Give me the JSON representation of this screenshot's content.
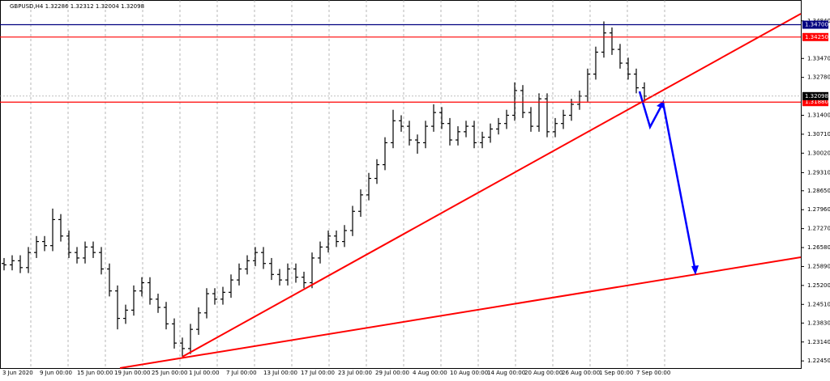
{
  "chart_data": {
    "type": "ohlc",
    "title": "GBPUSD,H4  1.32286 1.32312 1.32004 1.32098",
    "color": "#000000",
    "ylim": [
      1.2219,
      1.356
    ],
    "yticks": [
      {
        "value": 1.3484,
        "label": "1.34840"
      },
      {
        "value": 1.3347,
        "label": "1.33470"
      },
      {
        "value": 1.3278,
        "label": "1.32780"
      },
      {
        "value": 1.314,
        "label": "1.31400"
      },
      {
        "value": 1.3071,
        "label": "1.30710"
      },
      {
        "value": 1.3002,
        "label": "1.30020"
      },
      {
        "value": 1.2931,
        "label": "1.29310"
      },
      {
        "value": 1.2865,
        "label": "1.28650"
      },
      {
        "value": 1.2796,
        "label": "1.27960"
      },
      {
        "value": 1.2727,
        "label": "1.27270"
      },
      {
        "value": 1.2658,
        "label": "1.26580"
      },
      {
        "value": 1.2589,
        "label": "1.25890"
      },
      {
        "value": 1.252,
        "label": "1.25200"
      },
      {
        "value": 1.2451,
        "label": "1.24510"
      },
      {
        "value": 1.2383,
        "label": "1.23830"
      },
      {
        "value": 1.2314,
        "label": "1.23140"
      },
      {
        "value": 1.2245,
        "label": "1.22450"
      }
    ],
    "x_labels": [
      "3 Jun 2020",
      "9 Jun 00:00",
      "15 Jun 00:00",
      "19 Jun 00:00",
      "25 Jun 00:00",
      "1 Jul 00:00",
      "7 Jul 00:00",
      "13 Jul 00:00",
      "17 Jul 00:00",
      "23 Jul 00:00",
      "29 Jul 00:00",
      "4 Aug 00:00",
      "10 Aug 00:00",
      "14 Aug 00:00",
      "20 Aug 00:00",
      "26 Aug 00:00",
      "1 Sep 00:00",
      "7 Sep 00:00"
    ],
    "levels": [
      {
        "value": 1.347,
        "label": "1.34700",
        "color": "#000080"
      },
      {
        "value": 1.3425,
        "label": "1.34250",
        "color": "#ff0000"
      },
      {
        "value": 1.3188,
        "label": "1.31880",
        "color": "#ff0000"
      },
      {
        "value": 1.32098,
        "label": "1.32098",
        "color": "#000000"
      }
    ],
    "open": [
      1.26,
      1.2595,
      1.261,
      1.2585,
      1.264,
      1.268,
      1.2665,
      1.276,
      1.27,
      1.264,
      1.262,
      1.266,
      1.264,
      1.258,
      1.25,
      1.24,
      1.243,
      1.25,
      1.253,
      1.247,
      1.244,
      1.238,
      1.231,
      1.229,
      1.236,
      1.242,
      1.249,
      1.247,
      1.2495,
      1.254,
      1.258,
      1.261,
      1.264,
      1.26,
      1.256,
      1.254,
      1.258,
      1.255,
      1.253,
      1.262,
      1.266,
      1.27,
      1.268,
      1.272,
      1.279,
      1.285,
      1.291,
      1.296,
      1.304,
      1.312,
      1.31,
      1.305,
      1.304,
      1.31,
      1.315,
      1.311,
      1.305,
      1.308,
      1.31,
      1.304,
      1.306,
      1.309,
      1.311,
      1.314,
      1.323,
      1.315,
      1.31,
      1.32,
      1.308,
      1.311,
      1.314,
      1.318,
      1.321,
      1.329,
      1.337,
      1.344,
      1.338,
      1.333,
      1.329,
      1.324
    ],
    "high": [
      1.262,
      1.263,
      1.263,
      1.266,
      1.27,
      1.27,
      1.28,
      1.278,
      1.272,
      1.266,
      1.268,
      1.268,
      1.266,
      1.26,
      1.252,
      1.245,
      1.252,
      1.255,
      1.255,
      1.249,
      1.246,
      1.24,
      1.233,
      1.238,
      1.244,
      1.251,
      1.251,
      1.2515,
      1.256,
      1.26,
      1.263,
      1.266,
      1.266,
      1.262,
      1.258,
      1.26,
      1.26,
      1.257,
      1.264,
      1.268,
      1.272,
      1.272,
      1.274,
      1.281,
      1.287,
      1.293,
      1.298,
      1.306,
      1.316,
      1.314,
      1.312,
      1.307,
      1.312,
      1.318,
      1.317,
      1.313,
      1.31,
      1.312,
      1.312,
      1.308,
      1.311,
      1.313,
      1.316,
      1.326,
      1.325,
      1.317,
      1.322,
      1.322,
      1.313,
      1.316,
      1.32,
      1.323,
      1.331,
      1.339,
      1.3482,
      1.346,
      1.34,
      1.335,
      1.331,
      1.326
    ],
    "low": [
      1.2575,
      1.2575,
      1.2565,
      1.2565,
      1.262,
      1.2645,
      1.2645,
      1.268,
      1.262,
      1.26,
      1.26,
      1.262,
      1.256,
      1.248,
      1.236,
      1.238,
      1.241,
      1.248,
      1.245,
      1.242,
      1.236,
      1.229,
      1.226,
      1.227,
      1.234,
      1.24,
      1.245,
      1.245,
      1.2475,
      1.252,
      1.256,
      1.259,
      1.258,
      1.254,
      1.252,
      1.252,
      1.253,
      1.251,
      1.251,
      1.26,
      1.264,
      1.266,
      1.266,
      1.27,
      1.277,
      1.283,
      1.289,
      1.294,
      1.302,
      1.308,
      1.303,
      1.3,
      1.302,
      1.308,
      1.309,
      1.303,
      1.303,
      1.306,
      1.302,
      1.302,
      1.304,
      1.307,
      1.309,
      1.312,
      1.313,
      1.308,
      1.308,
      1.306,
      1.306,
      1.309,
      1.312,
      1.316,
      1.319,
      1.327,
      1.335,
      1.336,
      1.331,
      1.327,
      1.322,
      1.319
    ],
    "close": [
      1.2595,
      1.261,
      1.2585,
      1.264,
      1.268,
      1.2665,
      1.276,
      1.27,
      1.264,
      1.262,
      1.266,
      1.264,
      1.258,
      1.25,
      1.24,
      1.243,
      1.25,
      1.253,
      1.247,
      1.244,
      1.238,
      1.231,
      1.229,
      1.236,
      1.242,
      1.249,
      1.247,
      1.2495,
      1.254,
      1.258,
      1.261,
      1.264,
      1.26,
      1.256,
      1.254,
      1.258,
      1.255,
      1.253,
      1.262,
      1.266,
      1.27,
      1.268,
      1.272,
      1.279,
      1.285,
      1.291,
      1.296,
      1.304,
      1.312,
      1.31,
      1.305,
      1.304,
      1.31,
      1.315,
      1.311,
      1.305,
      1.308,
      1.31,
      1.304,
      1.306,
      1.309,
      1.311,
      1.314,
      1.323,
      1.315,
      1.31,
      1.32,
      1.308,
      1.311,
      1.314,
      1.318,
      1.321,
      1.329,
      1.337,
      1.344,
      1.338,
      1.333,
      1.329,
      1.324,
      1.321
    ]
  }
}
